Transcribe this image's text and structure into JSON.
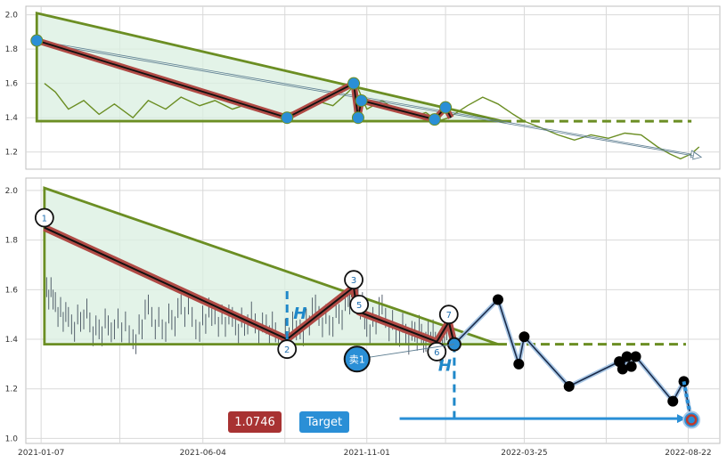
{
  "chart_data": [
    {
      "type": "line",
      "panel": "top",
      "ylim": [
        1.1,
        2.05
      ],
      "y_ticks": [
        "1.2",
        "1.4",
        "1.6",
        "1.8",
        "2.0"
      ],
      "x_range": [
        "2020-12-24",
        "2022-09-20"
      ],
      "grid": true,
      "line_color": "#6b8e23",
      "price_series": [
        [
          "2021-01-10",
          1.6
        ],
        [
          "2021-01-20",
          1.55
        ],
        [
          "2021-02-01",
          1.45
        ],
        [
          "2021-02-15",
          1.5
        ],
        [
          "2021-03-01",
          1.42
        ],
        [
          "2021-03-15",
          1.48
        ],
        [
          "2021-04-01",
          1.4
        ],
        [
          "2021-04-15",
          1.5
        ],
        [
          "2021-05-01",
          1.45
        ],
        [
          "2021-05-15",
          1.52
        ],
        [
          "2021-06-01",
          1.47
        ],
        [
          "2021-06-15",
          1.5
        ],
        [
          "2021-07-01",
          1.45
        ],
        [
          "2021-07-15",
          1.48
        ],
        [
          "2021-08-01",
          1.44
        ],
        [
          "2021-08-15",
          1.42
        ],
        [
          "2021-09-01",
          1.44
        ],
        [
          "2021-09-15",
          1.5
        ],
        [
          "2021-10-01",
          1.47
        ],
        [
          "2021-10-15",
          1.55
        ],
        [
          "2021-10-22",
          1.6
        ],
        [
          "2021-11-01",
          1.45
        ],
        [
          "2021-11-15",
          1.5
        ],
        [
          "2021-12-01",
          1.43
        ],
        [
          "2021-12-15",
          1.41
        ],
        [
          "2021-12-25",
          1.43
        ],
        [
          "2022-01-05",
          1.38
        ],
        [
          "2022-01-15",
          1.4
        ],
        [
          "2022-02-01",
          1.47
        ],
        [
          "2022-02-15",
          1.52
        ],
        [
          "2022-03-01",
          1.48
        ],
        [
          "2022-03-15",
          1.42
        ],
        [
          "2022-03-25",
          1.38
        ],
        [
          "2022-04-10",
          1.34
        ],
        [
          "2022-04-25",
          1.3
        ],
        [
          "2022-05-10",
          1.27
        ],
        [
          "2022-05-25",
          1.3
        ],
        [
          "2022-06-10",
          1.28
        ],
        [
          "2022-06-25",
          1.31
        ],
        [
          "2022-07-10",
          1.3
        ],
        [
          "2022-07-25",
          1.23
        ],
        [
          "2022-08-05",
          1.19
        ],
        [
          "2022-08-15",
          1.16
        ],
        [
          "2022-08-25",
          1.19
        ],
        [
          "2022-09-01",
          1.23
        ]
      ],
      "zigzag": [
        [
          "2021-01-03",
          1.85
        ],
        [
          "2021-08-20",
          1.4
        ],
        [
          "2021-10-20",
          1.6
        ],
        [
          "2021-10-24",
          1.4
        ],
        [
          "2021-10-27",
          1.5
        ],
        [
          "2022-01-02",
          1.39
        ],
        [
          "2022-01-12",
          1.46
        ],
        [
          "2022-01-17",
          1.4
        ]
      ],
      "triangle": {
        "apex": [
          "2021-01-03",
          2.01
        ],
        "base_start": [
          "2021-01-03",
          1.38
        ],
        "end": [
          "2022-03-05",
          1.38
        ]
      },
      "support_extension": {
        "from": [
          "2022-03-05",
          1.38
        ],
        "to": [
          "2022-08-25",
          1.38
        ]
      },
      "projection_arrows": [
        {
          "from": [
            "2021-01-03",
            1.85
          ],
          "to": [
            "2022-09-01",
            1.18
          ]
        },
        {
          "from": [
            "2021-01-03",
            1.84
          ],
          "to": [
            "2022-09-03",
            1.17
          ]
        }
      ]
    },
    {
      "type": "line",
      "panel": "bottom",
      "ylim": [
        0.98,
        2.05
      ],
      "y_ticks": [
        "1.0",
        "1.2",
        "1.4",
        "1.6",
        "1.8",
        "2.0"
      ],
      "x_ticks": [
        "2021-01-07",
        "2021-06-04",
        "2021-11-01",
        "2022-03-25",
        "2022-08-22"
      ],
      "x_range": [
        "2020-12-24",
        "2022-09-20"
      ],
      "grid": true,
      "bar_color": "#2f3b4c",
      "triangle": {
        "apex": [
          "2021-01-10",
          2.01
        ],
        "base_start": [
          "2021-01-10",
          1.38
        ],
        "end": [
          "2022-03-01",
          1.38
        ]
      },
      "support_extension": {
        "from": [
          "2022-03-01",
          1.38
        ],
        "to": [
          "2022-08-20",
          1.38
        ]
      },
      "pattern_path": [
        [
          "2021-01-10",
          1.85
        ],
        [
          "2021-08-20",
          1.4
        ],
        [
          "2021-10-20",
          1.61
        ],
        [
          "2021-10-23",
          1.52
        ],
        [
          "2021-10-25",
          1.51
        ],
        [
          "2022-01-04",
          1.39
        ],
        [
          "2022-01-15",
          1.47
        ],
        [
          "2022-01-20",
          1.38
        ]
      ],
      "pattern_points": [
        {
          "label": "1",
          "date": "2021-01-10",
          "value": 1.89
        },
        {
          "label": "2",
          "date": "2021-08-20",
          "value": 1.36
        },
        {
          "label": "3",
          "date": "2021-10-20",
          "value": 1.64
        },
        {
          "label": "5",
          "date": "2021-10-25",
          "value": 1.54
        },
        {
          "label": "6",
          "date": "2022-01-04",
          "value": 1.35
        },
        {
          "label": "7",
          "date": "2022-01-15",
          "value": 1.5
        }
      ],
      "sell_marker": {
        "label": "卖1",
        "date": "2021-10-23",
        "value": 1.32
      },
      "breakout_point": {
        "date": "2022-01-20",
        "value": 1.38
      },
      "future_path": [
        [
          "2022-01-20",
          1.38
        ],
        [
          "2022-03-01",
          1.56
        ],
        [
          "2022-03-20",
          1.3
        ],
        [
          "2022-03-25",
          1.41
        ],
        [
          "2022-05-05",
          1.21
        ],
        [
          "2022-06-20",
          1.31
        ],
        [
          "2022-06-23",
          1.28
        ],
        [
          "2022-06-27",
          1.33
        ],
        [
          "2022-07-01",
          1.29
        ],
        [
          "2022-07-05",
          1.33
        ],
        [
          "2022-08-08",
          1.15
        ],
        [
          "2022-08-18",
          1.23
        ],
        [
          "2022-08-25",
          1.07
        ]
      ],
      "target_point": {
        "date": "2022-08-25",
        "value": 1.075
      },
      "height_markers": [
        {
          "label": "H",
          "date": "2021-08-20",
          "from": 1.4,
          "to": 1.61
        },
        {
          "label": "H",
          "date": "2022-01-20",
          "from": 1.38,
          "to": 1.08
        }
      ],
      "target_line": {
        "from": "2021-12-01",
        "to": "2022-08-20",
        "value": 1.08
      }
    }
  ],
  "price_badge": {
    "text": "1.0746",
    "color": "#a83232"
  },
  "target_button": {
    "label": "Target",
    "color": "#2a8fd6"
  }
}
